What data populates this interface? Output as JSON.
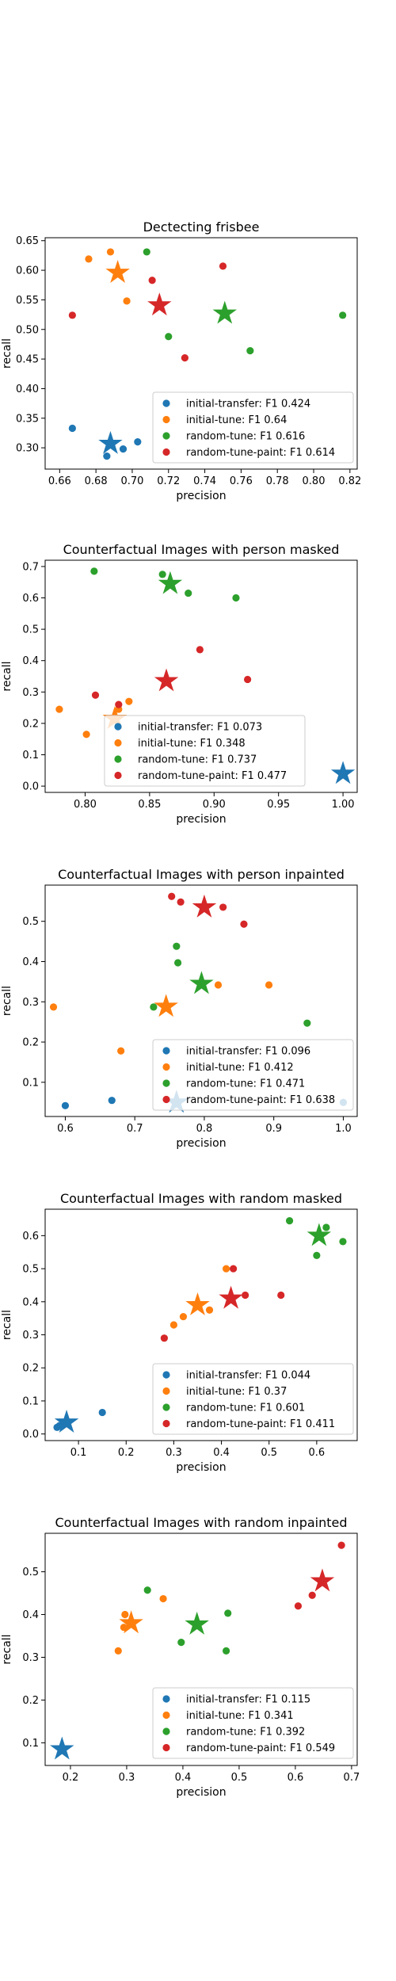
{
  "chart_data": [
    {
      "type": "scatter",
      "title": "Dectecting frisbee",
      "xlabel": "precision",
      "ylabel": "recall",
      "xlim": [
        0.652,
        0.824
      ],
      "ylim": [
        0.264,
        0.655
      ],
      "xticks": [
        0.66,
        0.68,
        0.7,
        0.72,
        0.74,
        0.76,
        0.78,
        0.8,
        0.82
      ],
      "xtick_labels": [
        "0.66",
        "0.68",
        "0.70",
        "0.72",
        "0.74",
        "0.76",
        "0.78",
        "0.80",
        "0.82"
      ],
      "yticks": [
        0.3,
        0.35,
        0.4,
        0.45,
        0.5,
        0.55,
        0.6,
        0.65
      ],
      "ytick_labels": [
        "0.30",
        "0.35",
        "0.40",
        "0.45",
        "0.50",
        "0.55",
        "0.60",
        "0.65"
      ],
      "grid": false,
      "legend_position": "lower right",
      "series": [
        {
          "name": "initial-transfer",
          "legend_label": "initial-transfer: F1 0.424",
          "color": "#1f77b4",
          "points": [
            [
              0.667,
              0.333
            ],
            [
              0.686,
              0.286
            ],
            [
              0.695,
              0.298
            ],
            [
              0.703,
              0.31
            ]
          ],
          "star": [
            0.688,
            0.307
          ]
        },
        {
          "name": "initial-tune",
          "legend_label": "initial-tune: F1 0.64",
          "color": "#ff7f0e",
          "points": [
            [
              0.676,
              0.619
            ],
            [
              0.688,
              0.631
            ],
            [
              0.697,
              0.548
            ]
          ],
          "star": [
            0.692,
            0.596
          ]
        },
        {
          "name": "random-tune",
          "legend_label": "random-tune: F1 0.616",
          "color": "#2ca02c",
          "points": [
            [
              0.708,
              0.631
            ],
            [
              0.72,
              0.488
            ],
            [
              0.765,
              0.464
            ],
            [
              0.816,
              0.524
            ]
          ],
          "star": [
            0.751,
            0.527
          ]
        },
        {
          "name": "random-tune-paint",
          "legend_label": "random-tune-paint: F1 0.614",
          "color": "#d62728",
          "points": [
            [
              0.667,
              0.524
            ],
            [
              0.711,
              0.583
            ],
            [
              0.729,
              0.452
            ],
            [
              0.75,
              0.607
            ]
          ],
          "star": [
            0.715,
            0.541
          ]
        }
      ]
    },
    {
      "type": "scatter",
      "title": "Counterfactual Images with person masked",
      "xlabel": "precision",
      "ylabel": "recall",
      "xlim": [
        0.769,
        1.011
      ],
      "ylim": [
        -0.02,
        0.72
      ],
      "xticks": [
        0.8,
        0.85,
        0.9,
        0.95,
        1.0
      ],
      "xtick_labels": [
        "0.80",
        "0.85",
        "0.90",
        "0.95",
        "1.00"
      ],
      "yticks": [
        0.0,
        0.1,
        0.2,
        0.3,
        0.4,
        0.5,
        0.6,
        0.7
      ],
      "ytick_labels": [
        "0.0",
        "0.1",
        "0.2",
        "0.3",
        "0.4",
        "0.5",
        "0.6",
        "0.7"
      ],
      "grid": false,
      "legend_position": "lower center",
      "series": [
        {
          "name": "initial-transfer",
          "legend_label": "initial-transfer: F1 0.073",
          "color": "#1f77b4",
          "points": [],
          "star": [
            1.0,
            0.04
          ]
        },
        {
          "name": "initial-tune",
          "legend_label": "initial-tune: F1 0.348",
          "color": "#ff7f0e",
          "points": [
            [
              0.78,
              0.245
            ],
            [
              0.801,
              0.165
            ],
            [
              0.826,
              0.245
            ],
            [
              0.834,
              0.27
            ]
          ],
          "star": [
            0.823,
            0.215
          ]
        },
        {
          "name": "random-tune",
          "legend_label": "random-tune: F1 0.737",
          "color": "#2ca02c",
          "points": [
            [
              0.807,
              0.685
            ],
            [
              0.86,
              0.675
            ],
            [
              0.88,
              0.615
            ],
            [
              0.917,
              0.6
            ]
          ],
          "star": [
            0.866,
            0.645
          ]
        },
        {
          "name": "random-tune-paint",
          "legend_label": "random-tune-paint: F1 0.477",
          "color": "#d62728",
          "points": [
            [
              0.808,
              0.29
            ],
            [
              0.826,
              0.26
            ],
            [
              0.889,
              0.435
            ],
            [
              0.926,
              0.34
            ]
          ],
          "star": [
            0.863,
            0.335
          ]
        }
      ]
    },
    {
      "type": "scatter",
      "title": "Counterfactual Images with person inpainted",
      "xlabel": "precision",
      "ylabel": "recall",
      "xlim": [
        0.571,
        1.02
      ],
      "ylim": [
        0.015,
        0.59
      ],
      "xticks": [
        0.6,
        0.7,
        0.8,
        0.9,
        1.0
      ],
      "xtick_labels": [
        "0.6",
        "0.7",
        "0.8",
        "0.9",
        "1.0"
      ],
      "yticks": [
        0.1,
        0.2,
        0.3,
        0.4,
        0.5
      ],
      "ytick_labels": [
        "0.1",
        "0.2",
        "0.3",
        "0.4",
        "0.5"
      ],
      "grid": false,
      "legend_position": "lower right",
      "series": [
        {
          "name": "initial-transfer",
          "legend_label": "initial-transfer: F1 0.096",
          "color": "#1f77b4",
          "points": [
            [
              0.6,
              0.042
            ],
            [
              0.667,
              0.055
            ],
            [
              1.0,
              0.05
            ]
          ],
          "star": [
            0.76,
            0.05
          ]
        },
        {
          "name": "initial-tune",
          "legend_label": "initial-tune: F1 0.412",
          "color": "#ff7f0e",
          "points": [
            [
              0.583,
              0.287
            ],
            [
              0.68,
              0.178
            ],
            [
              0.82,
              0.342
            ],
            [
              0.893,
              0.342
            ]
          ],
          "star": [
            0.745,
            0.288
          ]
        },
        {
          "name": "random-tune",
          "legend_label": "random-tune: F1 0.471",
          "color": "#2ca02c",
          "points": [
            [
              0.727,
              0.287
            ],
            [
              0.76,
              0.438
            ],
            [
              0.762,
              0.397
            ],
            [
              0.948,
              0.247
            ]
          ],
          "star": [
            0.796,
            0.345
          ]
        },
        {
          "name": "random-tune-paint",
          "legend_label": "random-tune-paint: F1 0.638",
          "color": "#d62728",
          "points": [
            [
              0.753,
              0.562
            ],
            [
              0.766,
              0.548
            ],
            [
              0.827,
              0.535
            ],
            [
              0.857,
              0.493
            ]
          ],
          "star": [
            0.8,
            0.535
          ]
        }
      ]
    },
    {
      "type": "scatter",
      "title": "Counterfactual Images with random masked",
      "xlabel": "precision",
      "ylabel": "recall",
      "xlim": [
        0.03,
        0.685
      ],
      "ylim": [
        -0.02,
        0.68
      ],
      "xticks": [
        0.1,
        0.2,
        0.3,
        0.4,
        0.5,
        0.6
      ],
      "xtick_labels": [
        "0.1",
        "0.2",
        "0.3",
        "0.4",
        "0.5",
        "0.6"
      ],
      "yticks": [
        0.0,
        0.1,
        0.2,
        0.3,
        0.4,
        0.5,
        0.6
      ],
      "ytick_labels": [
        "0.0",
        "0.1",
        "0.2",
        "0.3",
        "0.4",
        "0.5",
        "0.6"
      ],
      "grid": false,
      "legend_position": "lower right",
      "series": [
        {
          "name": "initial-transfer",
          "legend_label": "initial-transfer: F1 0.044",
          "color": "#1f77b4",
          "points": [
            [
              0.055,
              0.02
            ],
            [
              0.06,
              0.025
            ],
            [
              0.15,
              0.065
            ]
          ],
          "star": [
            0.075,
            0.035
          ]
        },
        {
          "name": "initial-tune",
          "legend_label": "initial-tune: F1 0.37",
          "color": "#ff7f0e",
          "points": [
            [
              0.3,
              0.33
            ],
            [
              0.32,
              0.355
            ],
            [
              0.375,
              0.375
            ],
            [
              0.41,
              0.5
            ]
          ],
          "star": [
            0.35,
            0.39
          ]
        },
        {
          "name": "random-tune",
          "legend_label": "random-tune: F1 0.601",
          "color": "#2ca02c",
          "points": [
            [
              0.543,
              0.645
            ],
            [
              0.6,
              0.54
            ],
            [
              0.62,
              0.625
            ],
            [
              0.655,
              0.582
            ]
          ],
          "star": [
            0.605,
            0.6
          ]
        },
        {
          "name": "random-tune-paint",
          "legend_label": "random-tune-paint: F1 0.411",
          "color": "#d62728",
          "points": [
            [
              0.28,
              0.29
            ],
            [
              0.425,
              0.5
            ],
            [
              0.45,
              0.42
            ],
            [
              0.525,
              0.42
            ]
          ],
          "star": [
            0.42,
            0.41
          ]
        }
      ]
    },
    {
      "type": "scatter",
      "title": "Counterfactual Images with random inpainted",
      "xlabel": "precision",
      "ylabel": "recall",
      "xlim": [
        0.155,
        0.71
      ],
      "ylim": [
        0.047,
        0.59
      ],
      "xticks": [
        0.2,
        0.3,
        0.4,
        0.5,
        0.6,
        0.7
      ],
      "xtick_labels": [
        "0.2",
        "0.3",
        "0.4",
        "0.5",
        "0.6",
        "0.7"
      ],
      "yticks": [
        0.1,
        0.2,
        0.3,
        0.4,
        0.5
      ],
      "ytick_labels": [
        "0.1",
        "0.2",
        "0.3",
        "0.4",
        "0.5"
      ],
      "grid": false,
      "legend_position": "lower right",
      "series": [
        {
          "name": "initial-transfer",
          "legend_label": "initial-transfer: F1 0.115",
          "color": "#1f77b4",
          "points": [],
          "star": [
            0.185,
            0.085
          ]
        },
        {
          "name": "initial-tune",
          "legend_label": "initial-tune: F1 0.341",
          "color": "#ff7f0e",
          "points": [
            [
              0.285,
              0.315
            ],
            [
              0.295,
              0.37
            ],
            [
              0.297,
              0.4
            ],
            [
              0.365,
              0.437
            ]
          ],
          "star": [
            0.308,
            0.38
          ]
        },
        {
          "name": "random-tune",
          "legend_label": "random-tune: F1 0.392",
          "color": "#2ca02c",
          "points": [
            [
              0.337,
              0.457
            ],
            [
              0.397,
              0.335
            ],
            [
              0.477,
              0.315
            ],
            [
              0.48,
              0.403
            ]
          ],
          "star": [
            0.425,
            0.377
          ]
        },
        {
          "name": "random-tune-paint",
          "legend_label": "random-tune-paint: F1 0.549",
          "color": "#d62728",
          "points": [
            [
              0.605,
              0.42
            ],
            [
              0.63,
              0.445
            ],
            [
              0.682,
              0.562
            ]
          ],
          "star": [
            0.648,
            0.478
          ]
        }
      ]
    }
  ]
}
